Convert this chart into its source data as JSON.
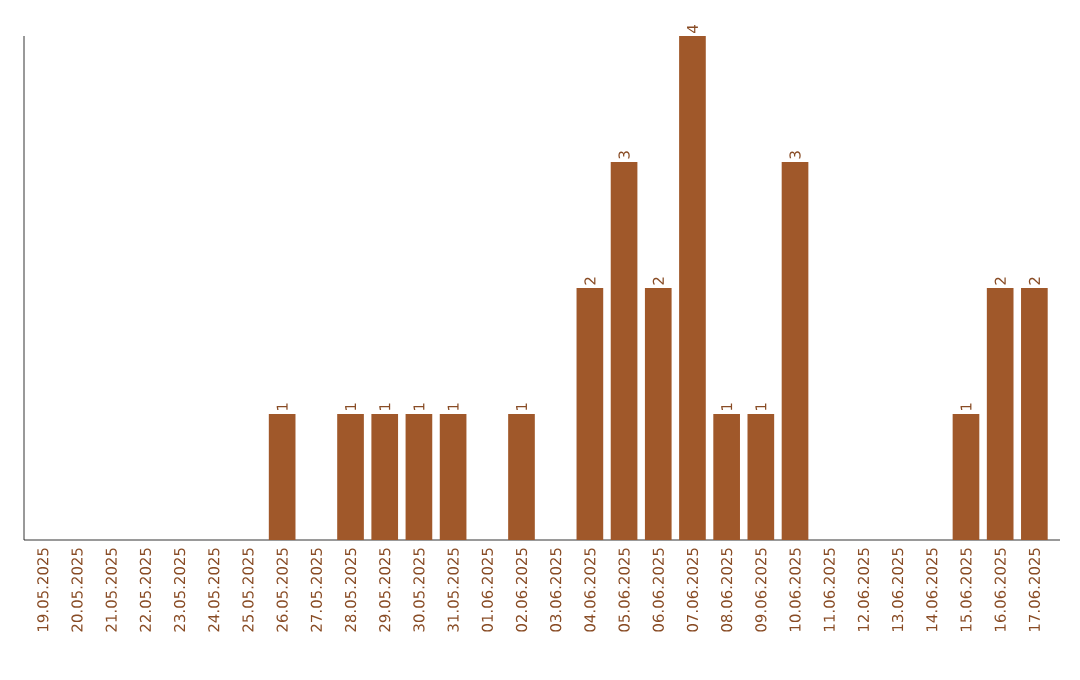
{
  "chart_data": {
    "type": "bar",
    "categories": [
      "19.05.2025",
      "20.05.2025",
      "21.05.2025",
      "22.05.2025",
      "23.05.2025",
      "24.05.2025",
      "25.05.2025",
      "26.05.2025",
      "27.05.2025",
      "28.05.2025",
      "29.05.2025",
      "30.05.2025",
      "31.05.2025",
      "01.06.2025",
      "02.06.2025",
      "03.06.2025",
      "04.06.2025",
      "05.06.2025",
      "06.06.2025",
      "07.06.2025",
      "08.06.2025",
      "09.06.2025",
      "10.06.2025",
      "11.06.2025",
      "12.06.2025",
      "13.06.2025",
      "14.06.2025",
      "15.06.2025",
      "16.06.2025",
      "17.06.2025"
    ],
    "values": [
      0,
      0,
      0,
      0,
      0,
      0,
      0,
      1,
      0,
      1,
      1,
      1,
      1,
      0,
      1,
      0,
      2,
      3,
      2,
      4,
      1,
      1,
      3,
      0,
      0,
      0,
      0,
      1,
      2,
      2
    ],
    "value_labels": [
      null,
      null,
      null,
      null,
      null,
      null,
      null,
      "1",
      null,
      "1",
      "1",
      "1",
      "1",
      null,
      "1",
      null,
      "2",
      "3",
      "2",
      "4",
      "1",
      "1",
      "3",
      null,
      null,
      null,
      null,
      "1",
      "2",
      "2"
    ],
    "color": "#a0582a",
    "ylim": [
      0,
      4
    ],
    "tick_labels": "x"
  }
}
